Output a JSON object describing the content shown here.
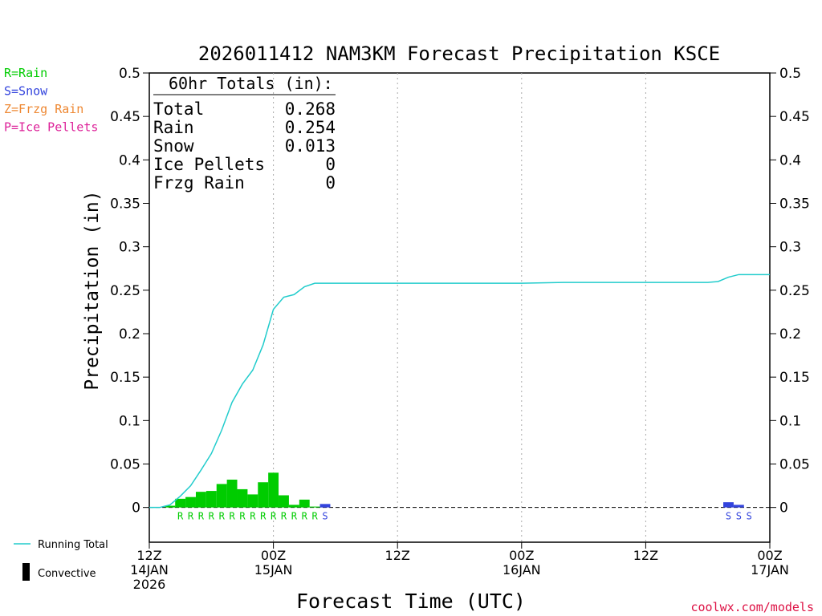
{
  "chart_data": {
    "type": "bar",
    "title": "2026011412 NAM3KM Forecast Precipitation KSCE",
    "ylabel": "Precipitation (in)",
    "xlabel": "Forecast Time (UTC)",
    "xlim": [
      0,
      60
    ],
    "ylim": [
      -0.04,
      0.5
    ],
    "y_ticks": [
      0,
      0.05,
      0.1,
      0.15,
      0.2,
      0.25,
      0.3,
      0.35,
      0.4,
      0.45,
      0.5
    ],
    "y_tick_labels": [
      "0",
      "0.05",
      "0.1",
      "0.15",
      "0.2",
      "0.25",
      "0.3",
      "0.35",
      "0.4",
      "0.45",
      "0.5"
    ],
    "x_ticks": [
      {
        "hour": 0,
        "lines": [
          "12Z",
          "14JAN",
          "2026"
        ]
      },
      {
        "hour": 12,
        "lines": [
          "00Z",
          "15JAN"
        ]
      },
      {
        "hour": 24,
        "lines": [
          "12Z"
        ]
      },
      {
        "hour": 36,
        "lines": [
          "00Z",
          "16JAN"
        ]
      },
      {
        "hour": 48,
        "lines": [
          "12Z"
        ]
      },
      {
        "hour": 60,
        "lines": [
          "00Z",
          "17JAN"
        ]
      }
    ],
    "grid_hours": [
      12,
      24,
      36,
      48
    ],
    "totals_box": {
      "heading": "60hr Totals (in):",
      "rows": [
        {
          "label": "Total",
          "value": "0.268"
        },
        {
          "label": "Rain",
          "value": "0.254"
        },
        {
          "label": "Snow",
          "value": "0.013"
        },
        {
          "label": "Ice Pellets",
          "value": "0"
        },
        {
          "label": "Frzg Rain",
          "value": "0"
        }
      ]
    },
    "ptype_legend": [
      {
        "text": "R=Rain",
        "color": "#00cc00"
      },
      {
        "text": "S=Snow",
        "color": "#3344dd"
      },
      {
        "text": "Z=Frzg Rain",
        "color": "#ee8833"
      },
      {
        "text": "P=Ice Pellets",
        "color": "#dd2299"
      }
    ],
    "series_legend": [
      {
        "text": "Running Total",
        "kind": "line",
        "color": "#22cccc"
      },
      {
        "text": "Convective",
        "kind": "bar",
        "color": "#000000"
      }
    ],
    "rain_bars": {
      "color": "#00cc00",
      "hours": [
        2,
        3,
        4,
        5,
        6,
        7,
        8,
        9,
        10,
        11,
        12,
        13,
        14,
        15,
        16
      ],
      "values": [
        0.002,
        0.01,
        0.012,
        0.018,
        0.019,
        0.027,
        0.032,
        0.021,
        0.015,
        0.029,
        0.04,
        0.014,
        0.003,
        0.009,
        0.001
      ]
    },
    "snow_bars": {
      "color": "#3344dd",
      "hours": [
        17,
        56,
        57
      ],
      "values": [
        0.004,
        0.006,
        0.003
      ]
    },
    "running_total": {
      "color": "#22cccc",
      "hours": [
        0,
        1,
        2,
        3,
        4,
        5,
        6,
        7,
        8,
        9,
        10,
        11,
        12,
        13,
        14,
        15,
        16,
        17,
        18,
        24,
        36,
        40,
        48,
        54,
        55,
        56,
        57,
        58,
        59,
        60
      ],
      "values": [
        0,
        0,
        0.003,
        0.013,
        0.025,
        0.043,
        0.062,
        0.089,
        0.121,
        0.142,
        0.158,
        0.187,
        0.228,
        0.242,
        0.245,
        0.254,
        0.258,
        0.258,
        0.258,
        0.258,
        0.258,
        0.259,
        0.259,
        0.259,
        0.26,
        0.265,
        0.268,
        0.268,
        0.268,
        0.268
      ]
    },
    "ptype_marks": [
      {
        "hour": 3,
        "letter": "R",
        "color": "#00cc00"
      },
      {
        "hour": 4,
        "letter": "R",
        "color": "#00cc00"
      },
      {
        "hour": 5,
        "letter": "R",
        "color": "#00cc00"
      },
      {
        "hour": 6,
        "letter": "R",
        "color": "#00cc00"
      },
      {
        "hour": 7,
        "letter": "R",
        "color": "#00cc00"
      },
      {
        "hour": 8,
        "letter": "R",
        "color": "#00cc00"
      },
      {
        "hour": 9,
        "letter": "R",
        "color": "#00cc00"
      },
      {
        "hour": 10,
        "letter": "R",
        "color": "#00cc00"
      },
      {
        "hour": 11,
        "letter": "R",
        "color": "#00cc00"
      },
      {
        "hour": 12,
        "letter": "R",
        "color": "#00cc00"
      },
      {
        "hour": 13,
        "letter": "R",
        "color": "#00cc00"
      },
      {
        "hour": 14,
        "letter": "R",
        "color": "#00cc00"
      },
      {
        "hour": 15,
        "letter": "R",
        "color": "#00cc00"
      },
      {
        "hour": 16,
        "letter": "R",
        "color": "#00cc00"
      },
      {
        "hour": 17,
        "letter": "S",
        "color": "#3344dd"
      },
      {
        "hour": 56,
        "letter": "S",
        "color": "#3344dd"
      },
      {
        "hour": 57,
        "letter": "S",
        "color": "#3344dd"
      },
      {
        "hour": 58,
        "letter": "S",
        "color": "#3344dd"
      }
    ],
    "credit": "coolwx.com/models"
  }
}
